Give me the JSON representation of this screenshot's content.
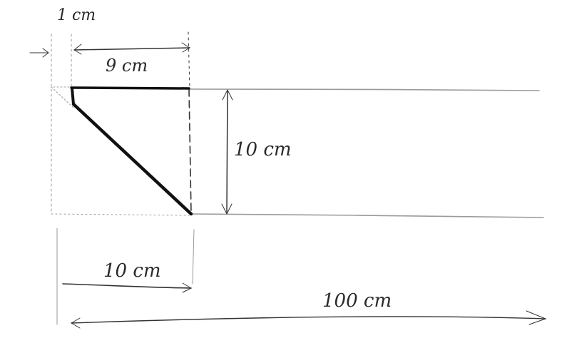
{
  "labels": {
    "one_cm": "1 cm",
    "nine_cm": "9 cm",
    "ten_cm_vertical": "10 cm",
    "ten_cm_horizontal": "10 cm",
    "hundred_cm": "100 cm"
  },
  "colors": {
    "ink": "#333333",
    "heavy_ink": "#111111",
    "faint_ink": "#9a9a9a",
    "background": "#ffffff"
  }
}
